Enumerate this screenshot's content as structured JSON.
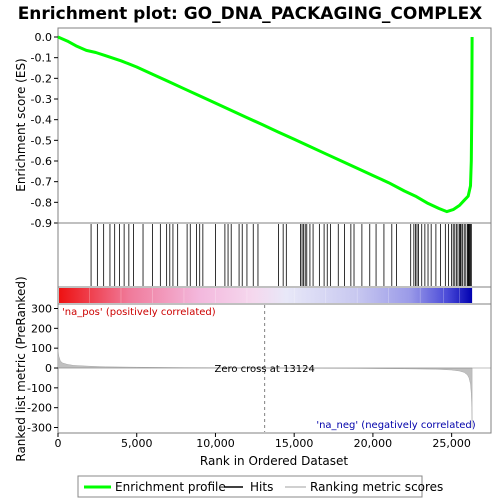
{
  "chart_data": {
    "type": "line",
    "title": "Enrichment plot: GO_DNA_PACKAGING_COMPLEX",
    "xlabel": "Rank in Ordered Dataset",
    "xlim": [
      0,
      27500
    ],
    "x_ticks": [
      0,
      5000,
      10000,
      15000,
      20000,
      25000
    ],
    "x_tick_labels": [
      "0",
      "5,000",
      "10,000",
      "15,000",
      "20,000",
      "25,000"
    ],
    "enrichment_panel": {
      "ylabel": "Enrichment score (ES)",
      "ylim": [
        -0.9,
        0.02
      ],
      "y_ticks": [
        0.0,
        -0.1,
        -0.2,
        -0.3,
        -0.4,
        -0.5,
        -0.6,
        -0.7,
        -0.8,
        -0.9
      ],
      "y_tick_labels": [
        "0.0",
        "-0.1",
        "-0.2",
        "-0.3",
        "-0.4",
        "-0.5",
        "-0.6",
        "-0.7",
        "-0.8",
        "-0.9"
      ],
      "series": [
        {
          "name": "Enrichment profile",
          "color": "#00ff00",
          "x": [
            0,
            600,
            1200,
            1800,
            2400,
            3000,
            4000,
            5000,
            6000,
            7000,
            8000,
            9000,
            10000,
            11000,
            12000,
            13000,
            14000,
            15000,
            16000,
            17000,
            18000,
            19000,
            20000,
            21000,
            22000,
            22700,
            23500,
            24200,
            24700,
            25100,
            25500,
            25800,
            26050,
            26200,
            26250,
            26280,
            26300
          ],
          "y": [
            0.0,
            -0.02,
            -0.045,
            -0.065,
            -0.075,
            -0.09,
            -0.115,
            -0.145,
            -0.18,
            -0.215,
            -0.25,
            -0.285,
            -0.32,
            -0.355,
            -0.39,
            -0.425,
            -0.46,
            -0.495,
            -0.53,
            -0.565,
            -0.6,
            -0.635,
            -0.67,
            -0.705,
            -0.745,
            -0.77,
            -0.805,
            -0.83,
            -0.845,
            -0.835,
            -0.815,
            -0.79,
            -0.77,
            -0.72,
            -0.6,
            -0.35,
            0.0
          ]
        }
      ]
    },
    "hits": {
      "label": "Hits",
      "color": "#000000",
      "positions": [
        2100,
        2500,
        2900,
        3300,
        3600,
        3900,
        4200,
        4500,
        4800,
        5400,
        6000,
        6500,
        6900,
        7100,
        7300,
        7600,
        8200,
        8400,
        8800,
        9000,
        9200,
        10000,
        10600,
        10800,
        11000,
        11500,
        11700,
        12000,
        12400,
        12700,
        14000,
        14300,
        14500,
        15400,
        15500,
        15600,
        15700,
        15800,
        16000,
        16200,
        16600,
        16900,
        17100,
        17300,
        17800,
        18200,
        18600,
        18800,
        19300,
        19800,
        20200,
        20700,
        21200,
        21500,
        22400,
        22600,
        22700,
        22800,
        22900,
        23100,
        23300,
        23500,
        23700,
        24000,
        24300,
        24600,
        24800,
        25000,
        25100,
        25200,
        25300,
        25400,
        25500,
        25550,
        25600,
        25700,
        25800,
        25900,
        26000,
        26050,
        26100,
        26150,
        26200,
        26250
      ]
    },
    "ranked_metric_panel": {
      "ylabel": "Ranked list metric (PreRanked)",
      "ylim": [
        -330,
        330
      ],
      "y_ticks": [
        300,
        200,
        100,
        0,
        -100,
        -200,
        -300
      ],
      "y_tick_labels": [
        "300",
        "200",
        "100",
        "0",
        "-100",
        "-200",
        "-300"
      ],
      "series_name": "Ranking metric scores",
      "color": "#c0c0c0",
      "x": [
        0,
        50,
        150,
        300,
        600,
        1000,
        2000,
        3000,
        5000,
        8000,
        11000,
        13124,
        16000,
        19000,
        22000,
        24000,
        25000,
        25500,
        25800,
        26000,
        26100,
        26200,
        26250,
        26280,
        26300
      ],
      "y": [
        95,
        60,
        35,
        25,
        18,
        13,
        9,
        6,
        4,
        2,
        1,
        0,
        -1,
        -2,
        -4,
        -6,
        -10,
        -15,
        -22,
        -35,
        -50,
        -80,
        -130,
        -200,
        -300
      ],
      "zero_cross_rank": 13124,
      "zero_cross_label": "Zero cross at 13124",
      "pos_label": "'na_pos' (positively correlated)",
      "neg_label": "'na_neg' (negatively correlated)"
    },
    "legend": {
      "placement": "bottom",
      "entries": [
        {
          "label": "Enrichment profile",
          "color": "#00ff00"
        },
        {
          "label": "Hits",
          "color": "#000000"
        },
        {
          "label": "Ranking metric scores",
          "color": "#c0c0c0"
        }
      ]
    }
  }
}
